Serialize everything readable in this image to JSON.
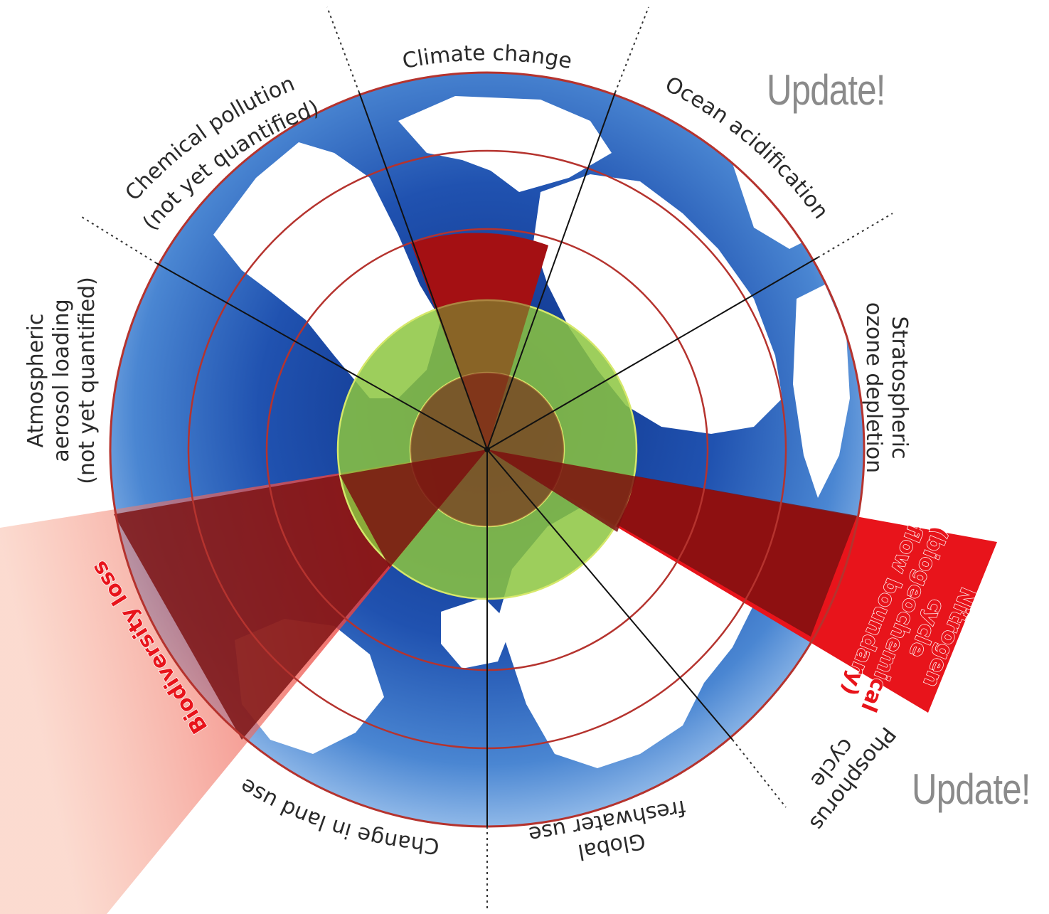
{
  "labels": {
    "climate_change": "Climate change",
    "ocean_acidification": "Ocean acidification",
    "ozone_line1": "Stratospheric",
    "ozone_line2": "ozone depletion",
    "nitrogen_line1": "Nitrogen",
    "nitrogen_line2": "cycle",
    "nitrogen_line3": "(biogeochemical",
    "nitrogen_line4": "flow boundary)",
    "phosphorus_line1": "Phosphorus",
    "phosphorus_line2": "cycle",
    "freshwater_line1": "Global",
    "freshwater_line2": "freshwater use",
    "land_use": "Change in land use",
    "biodiversity": "Biodiversity loss",
    "aerosol_line1": "Atmospheric",
    "aerosol_line2": "aerosol loading",
    "aerosol_line3": "(not yet quantified)",
    "chemical_line1": "Chemical pollution",
    "chemical_line2": "(not yet quantified)"
  },
  "updates": {
    "top": "Update!",
    "bottom": "Update!"
  },
  "colors": {
    "exceeded_red": "#e8141b",
    "safe_green": "#8cc63f",
    "ocean_blue": "#2249a8",
    "land_white": "#ffffff",
    "ring_red": "#b5332e",
    "text_gray": "#8a8a8a"
  }
}
